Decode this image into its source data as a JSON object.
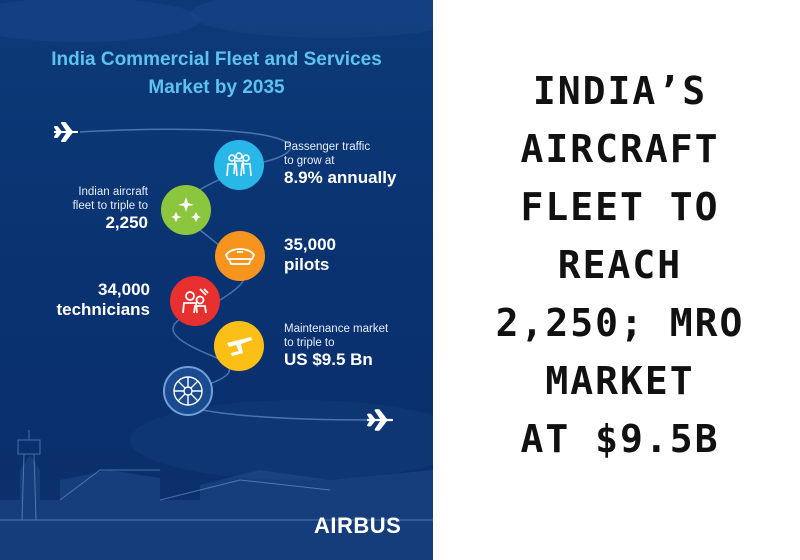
{
  "poster": {
    "title_line1": "India Commercial Fleet and Services",
    "title_line2": "Market by 2035",
    "stats": {
      "passenger_sm1": "Passenger traffic",
      "passenger_sm2": "to grow at",
      "passenger_lg": "8.9% annually",
      "fleet_sm1": "Indian aircraft",
      "fleet_sm2": "fleet to triple to",
      "fleet_lg": "2,250",
      "pilots_lg1": "35,000",
      "pilots_lg2": "pilots",
      "tech_lg1": "34,000",
      "tech_lg2": "technicians",
      "mro_sm1": "Maintenance market",
      "mro_sm2": "to triple to",
      "mro_lg": "US $9.5 Bn"
    },
    "brand": "AIRBUS",
    "colors": {
      "background": "#0b3573",
      "title": "#5cc3ee",
      "passenger": "#29b7e8",
      "fleet": "#8cc63f",
      "pilots": "#f7941d",
      "technicians": "#e8312f",
      "maintenance": "#fbbf16",
      "engine": "#1a4a8f"
    }
  },
  "headline": {
    "line1": "INDIA’S",
    "line2": "AIRCRAFT",
    "line3": "FLEET TO",
    "line4": "REACH",
    "line5": "2,250; MRO",
    "line6": "MARKET",
    "line7": "AT $9.5B"
  }
}
